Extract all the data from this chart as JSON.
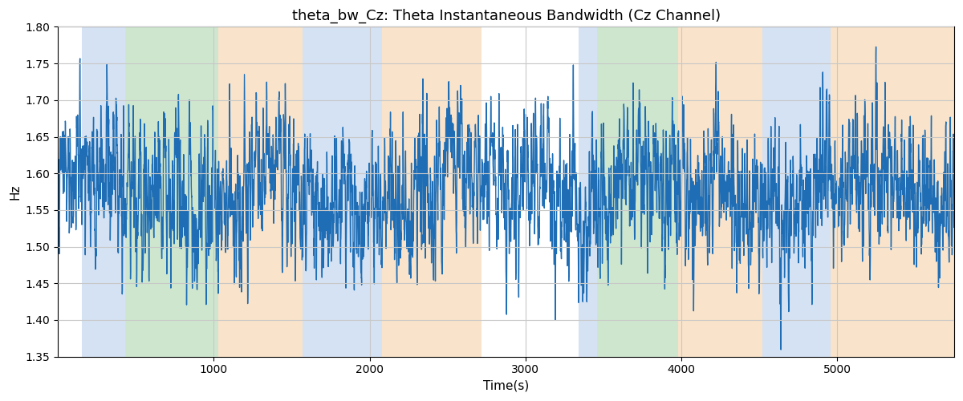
{
  "title": "theta_bw_Cz: Theta Instantaneous Bandwidth (Cz Channel)",
  "xlabel": "Time(s)",
  "ylabel": "Hz",
  "xlim": [
    0,
    5750
  ],
  "ylim": [
    1.35,
    1.8
  ],
  "line_color": "#1f6eb5",
  "line_width": 1.0,
  "background_color": "#ffffff",
  "grid_color": "#c8c8c8",
  "colored_regions": [
    {
      "start": 155,
      "end": 430,
      "color": "#adc6e8",
      "alpha": 0.5
    },
    {
      "start": 430,
      "end": 1030,
      "color": "#9fcf9f",
      "alpha": 0.5
    },
    {
      "start": 1030,
      "end": 1570,
      "color": "#f5c896",
      "alpha": 0.5
    },
    {
      "start": 1570,
      "end": 1680,
      "color": "#adc6e8",
      "alpha": 0.5
    },
    {
      "start": 1680,
      "end": 2080,
      "color": "#adc6e8",
      "alpha": 0.5
    },
    {
      "start": 2080,
      "end": 2720,
      "color": "#f5c896",
      "alpha": 0.5
    },
    {
      "start": 3340,
      "end": 3460,
      "color": "#adc6e8",
      "alpha": 0.5
    },
    {
      "start": 3460,
      "end": 3980,
      "color": "#9fcf9f",
      "alpha": 0.5
    },
    {
      "start": 3980,
      "end": 4520,
      "color": "#f5c896",
      "alpha": 0.5
    },
    {
      "start": 4520,
      "end": 4700,
      "color": "#adc6e8",
      "alpha": 0.5
    },
    {
      "start": 4700,
      "end": 4960,
      "color": "#adc6e8",
      "alpha": 0.5
    },
    {
      "start": 4960,
      "end": 5750,
      "color": "#f5c896",
      "alpha": 0.5
    }
  ],
  "seed": 42,
  "n_points": 5750,
  "t_start": 0,
  "t_end": 5750,
  "mean_val": 1.578,
  "title_fontsize": 13,
  "xticks": [
    1000,
    2000,
    3000,
    4000,
    5000
  ]
}
